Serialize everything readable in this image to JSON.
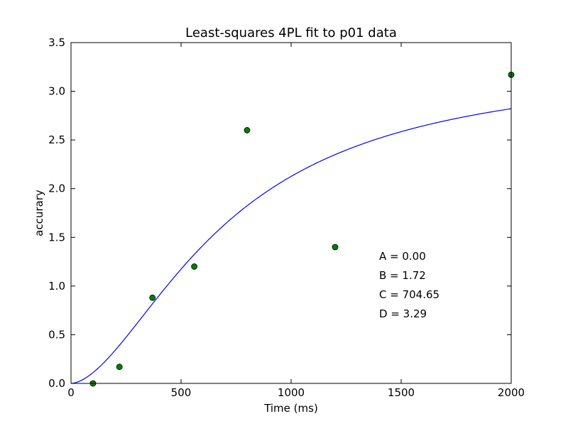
{
  "chart_data": {
    "type": "scatter",
    "title": "Least-squares 4PL fit to p01 data",
    "xlabel": "Time (ms)",
    "ylabel": "accurary",
    "xlim": [
      0,
      2000
    ],
    "ylim": [
      0.0,
      3.5
    ],
    "x_ticks": [
      0,
      500,
      1000,
      1500,
      2000
    ],
    "x_tick_labels": [
      "0",
      "500",
      "1000",
      "1500",
      "2000"
    ],
    "y_ticks": [
      0.0,
      0.5,
      1.0,
      1.5,
      2.0,
      2.5,
      3.0,
      3.5
    ],
    "y_tick_labels": [
      "0.0",
      "0.5",
      "1.0",
      "1.5",
      "2.0",
      "2.5",
      "3.0",
      "3.5"
    ],
    "grid": false,
    "legend": "none",
    "series": [
      {
        "kind": "points",
        "color": "#007f00",
        "x": [
          100,
          220,
          370,
          560,
          800,
          1200,
          2000
        ],
        "y": [
          0.0,
          0.17,
          0.88,
          1.2,
          2.6,
          1.4,
          3.17
        ]
      },
      {
        "kind": "line",
        "color": "#0000ff",
        "model": "4PL",
        "params": {
          "A": 0.0,
          "B": 1.72,
          "C": 704.65,
          "D": 3.29
        }
      }
    ],
    "annotations": [
      "A = 0.00",
      "B = 1.72",
      "C = 704.65",
      "D = 3.29"
    ]
  }
}
